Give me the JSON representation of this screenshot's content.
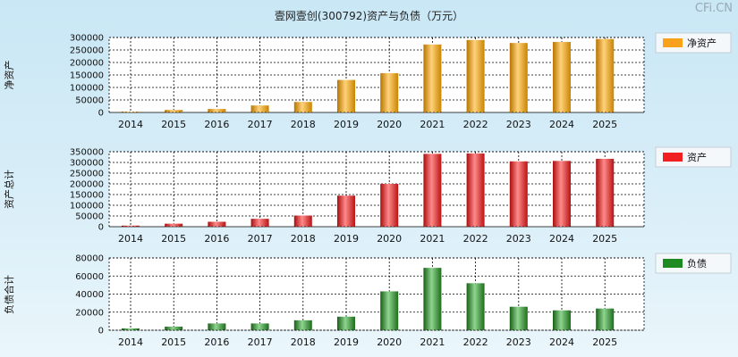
{
  "title": "壹网壹创(300792)资产与负债（万元）",
  "watermark": "CFi.CN",
  "colors": {
    "equity": "#f7a21a",
    "assets": "#f02020",
    "liabilities": "#1f8a1f"
  },
  "chart_data": [
    {
      "type": "bar",
      "title": "",
      "ylabel": "净资产",
      "legend": "净资产",
      "legend_placement": "right",
      "grid": true,
      "categories": [
        "2014",
        "2015",
        "2016",
        "2017",
        "2018",
        "2019",
        "2020",
        "2021",
        "2022",
        "2023",
        "2024",
        "2025"
      ],
      "values": [
        3000,
        10000,
        14000,
        28000,
        42000,
        130000,
        157000,
        272000,
        290000,
        278000,
        282000,
        294000
      ],
      "ylim": [
        0,
        300000
      ],
      "yticks": [
        "300000",
        "250000",
        "200000",
        "150000",
        "100000",
        "50000",
        "0"
      ]
    },
    {
      "type": "bar",
      "title": "",
      "ylabel": "资产总计",
      "legend": "资产",
      "legend_placement": "right",
      "grid": true,
      "categories": [
        "2014",
        "2015",
        "2016",
        "2017",
        "2018",
        "2019",
        "2020",
        "2021",
        "2022",
        "2023",
        "2024",
        "2025"
      ],
      "values": [
        5000,
        14000,
        23000,
        37000,
        52000,
        145000,
        200000,
        340000,
        342000,
        305000,
        307000,
        317000
      ],
      "ylim": [
        0,
        350000
      ],
      "yticks": [
        "350000",
        "300000",
        "250000",
        "200000",
        "150000",
        "100000",
        "50000",
        "0"
      ]
    },
    {
      "type": "bar",
      "title": "",
      "ylabel": "负债合计",
      "legend": "负债",
      "legend_placement": "right",
      "grid": true,
      "categories": [
        "2014",
        "2015",
        "2016",
        "2017",
        "2018",
        "2019",
        "2020",
        "2021",
        "2022",
        "2023",
        "2024",
        "2025"
      ],
      "values": [
        2000,
        4000,
        7500,
        7500,
        11000,
        15000,
        43000,
        69000,
        52000,
        26000,
        22000,
        24000
      ],
      "ylim": [
        0,
        80000
      ],
      "yticks": [
        "80000",
        "60000",
        "40000",
        "20000",
        "0"
      ]
    }
  ]
}
